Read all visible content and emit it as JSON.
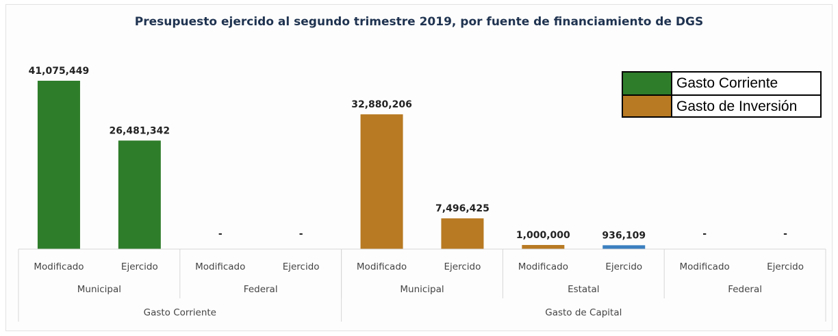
{
  "chart_data": {
    "type": "bar",
    "title": "Presupuesto ejercido al segundo trimestre 2019, por fuente de financiamiento de DGS",
    "bars": [
      {
        "category": "Modificado",
        "value": 41075449,
        "label": "41,075,449",
        "color": "#2e7d2a"
      },
      {
        "category": "Ejercido",
        "value": 26481342,
        "label": "26,481,342",
        "color": "#2e7d2a"
      },
      {
        "category": "Modificado",
        "value": 0,
        "label": "-",
        "color": "#2e7d2a"
      },
      {
        "category": "Ejercido",
        "value": 0,
        "label": "-",
        "color": "#2e7d2a"
      },
      {
        "category": "Modificado",
        "value": 32880206,
        "label": "32,880,206",
        "color": "#b87a22"
      },
      {
        "category": "Ejercido",
        "value": 7496425,
        "label": "7,496,425",
        "color": "#b87a22"
      },
      {
        "category": "Modificado",
        "value": 1000000,
        "label": "1,000,000",
        "color": "#b87a22"
      },
      {
        "category": "Ejercido",
        "value": 936109,
        "label": "936,109",
        "color": "#3a7fc0"
      },
      {
        "category": "Modificado",
        "value": 0,
        "label": "-",
        "color": "#b87a22"
      },
      {
        "category": "Ejercido",
        "value": 0,
        "label": "-",
        "color": "#b87a22"
      }
    ],
    "level2": [
      {
        "label": "Municipal",
        "span": [
          0,
          2
        ]
      },
      {
        "label": "Federal",
        "span": [
          2,
          4
        ]
      },
      {
        "label": "Municipal",
        "span": [
          4,
          6
        ]
      },
      {
        "label": "Estatal",
        "span": [
          6,
          8
        ]
      },
      {
        "label": "Federal",
        "span": [
          8,
          10
        ]
      }
    ],
    "level1": [
      {
        "label": "Gasto Corriente",
        "span": [
          0,
          4
        ]
      },
      {
        "label": "Gasto de Capital",
        "span": [
          4,
          10
        ]
      }
    ],
    "ylim": [
      0,
      41075449
    ],
    "grid": false,
    "legend_position": "top-right"
  },
  "legend": {
    "items": [
      {
        "label": "Gasto Corriente",
        "color": "#2e7d2a"
      },
      {
        "label": "Gasto de Inversión",
        "color": "#b87a22"
      }
    ]
  }
}
